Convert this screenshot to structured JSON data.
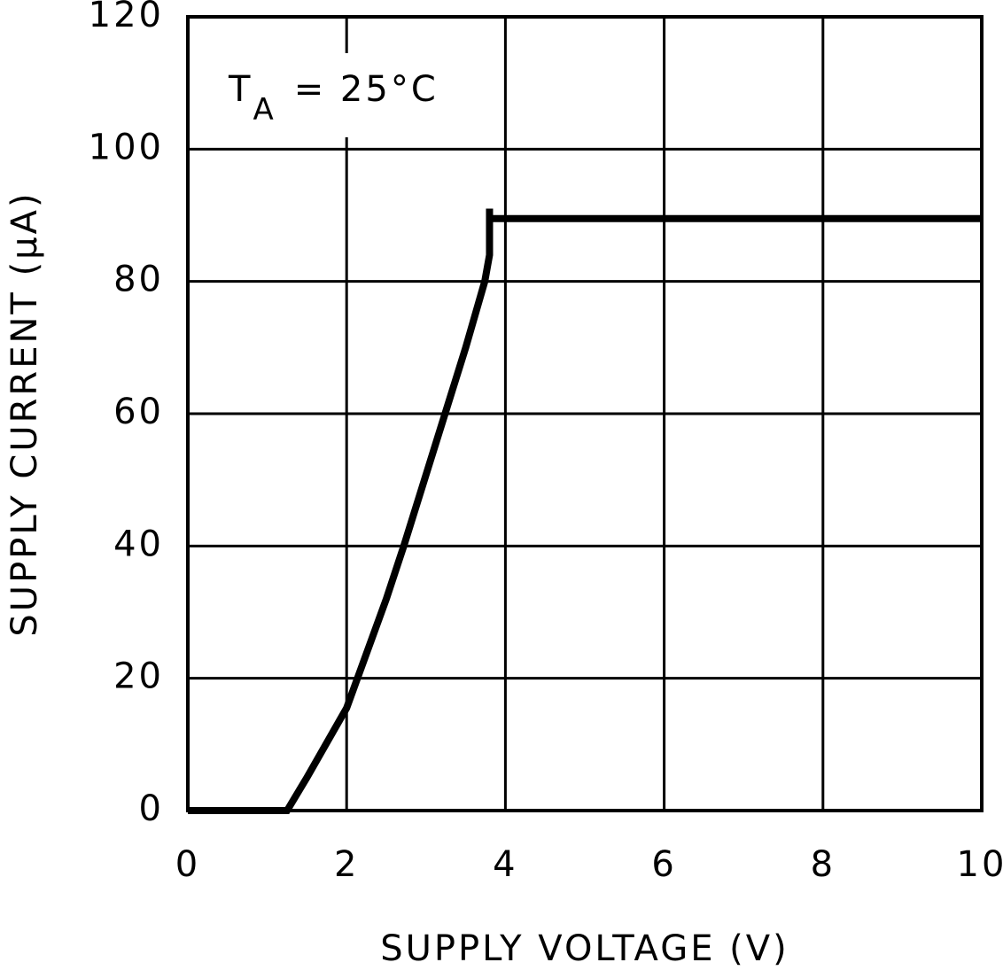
{
  "chart_data": {
    "type": "line",
    "x_label": "SUPPLY VOLTAGE (V)",
    "y_label": "SUPPLY CURRENT (μA)",
    "annotation": {
      "symbol": "T",
      "subscript": "A",
      "text": "= 25°C"
    },
    "x": [
      0,
      1.25,
      1.5,
      2,
      2.5,
      2.72,
      3.24,
      3.5,
      3.74,
      3.8,
      3.8,
      3.8,
      10
    ],
    "series": [
      {
        "color": "#000000",
        "values": [
          0,
          0,
          5,
          15.5,
          32,
          40,
          60,
          70,
          80,
          84,
          91,
          89.5,
          89.5
        ]
      }
    ],
    "xlim": [
      0,
      10
    ],
    "xticks": [
      0,
      2,
      4,
      6,
      8,
      10
    ],
    "ylim": [
      0,
      120
    ],
    "yticks": [
      0,
      20,
      40,
      60,
      80,
      100,
      120
    ],
    "grid": true
  }
}
